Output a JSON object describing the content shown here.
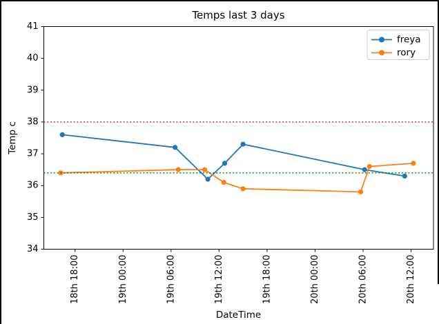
{
  "figure": {
    "background": "#ffffff",
    "frame_color": "#000000"
  },
  "chart_data": {
    "type": "line",
    "title": "Temps last 3 days",
    "xlabel": "DateTime",
    "ylabel": "Temp c",
    "grid": false,
    "ylim": [
      34,
      41
    ],
    "yticks": [
      34,
      35,
      36,
      37,
      38,
      39,
      40,
      41
    ],
    "x_unit": "hours relative to first tick (18th 18:00)",
    "xlim_hours": [
      -3.9,
      44.8
    ],
    "xticks": [
      {
        "hours": 0,
        "label": "18th 18:00"
      },
      {
        "hours": 6,
        "label": "19th 00:00"
      },
      {
        "hours": 12,
        "label": "19th 06:00"
      },
      {
        "hours": 18,
        "label": "19th 12:00"
      },
      {
        "hours": 24,
        "label": "19th 18:00"
      },
      {
        "hours": 30,
        "label": "20th 00:00"
      },
      {
        "hours": 36,
        "label": "20th 06:00"
      },
      {
        "hours": 42,
        "label": "20th 12:00"
      }
    ],
    "series": [
      {
        "name": "freya",
        "color": "#1f77b4",
        "marker": "circle",
        "points": [
          [
            -1.6,
            37.6
          ],
          [
            12.5,
            37.2
          ],
          [
            16.6,
            36.2
          ],
          [
            18.7,
            36.7
          ],
          [
            21.0,
            37.3
          ],
          [
            36.2,
            36.5
          ],
          [
            41.2,
            36.3
          ]
        ]
      },
      {
        "name": "rory",
        "color": "#ff7f0e",
        "marker": "circle",
        "points": [
          [
            -1.8,
            36.4
          ],
          [
            12.9,
            36.5
          ],
          [
            16.2,
            36.5
          ],
          [
            18.6,
            36.1
          ],
          [
            21.0,
            35.9
          ],
          [
            35.7,
            35.8
          ],
          [
            36.8,
            36.6
          ],
          [
            42.3,
            36.7
          ]
        ]
      }
    ],
    "reference_lines": [
      {
        "name": "upper-reference",
        "y": 38.0,
        "color": "#d62728",
        "style": "dotted"
      },
      {
        "name": "lower-reference",
        "y": 36.4,
        "color": "#008000",
        "style": "dotted"
      }
    ],
    "legend": {
      "position": "upper-right",
      "entries": [
        "freya",
        "rory"
      ]
    }
  }
}
